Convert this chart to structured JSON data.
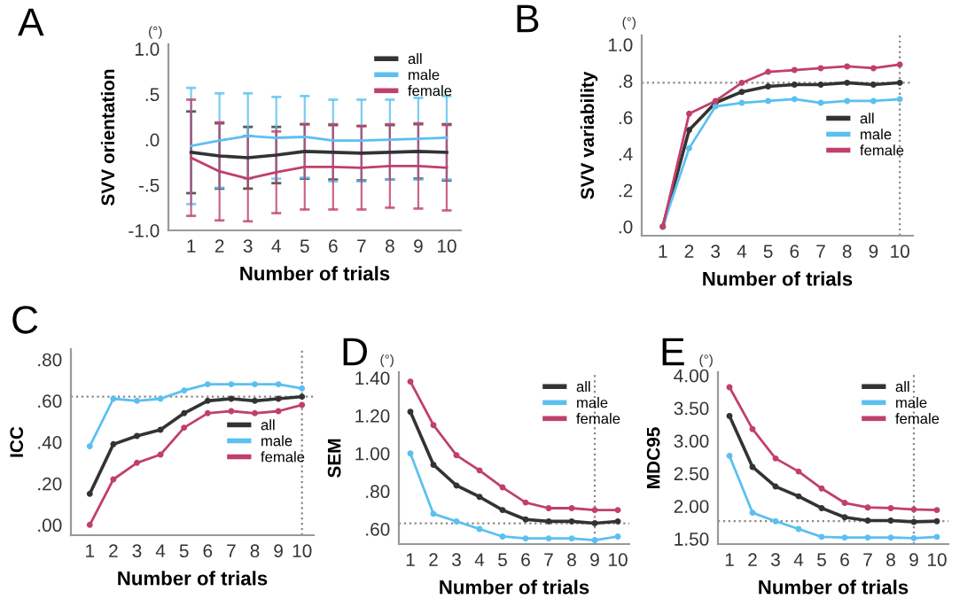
{
  "chart_data": [
    {
      "type": "line",
      "title": "A",
      "xlabel": "Number of trials",
      "ylabel": "SVV orientation",
      "annotations": [
        "(°)"
      ],
      "x": [
        1,
        2,
        3,
        4,
        5,
        6,
        7,
        8,
        9,
        10
      ],
      "xlim": [
        0.2,
        10.5
      ],
      "xticks": [
        1,
        2,
        3,
        4,
        5,
        6,
        7,
        8,
        9,
        10
      ],
      "ylim": [
        -1.0,
        1.05
      ],
      "yticks": [
        {
          "value": -1.0,
          "label": "-1.0"
        },
        {
          "value": -0.5,
          "label": "-.5"
        },
        {
          "value": 0,
          "label": ".0"
        },
        {
          "value": 0.5,
          "label": ".5"
        },
        {
          "value": 1.0,
          "label": "1.0"
        }
      ],
      "legend": "top right",
      "marker": "none",
      "grid": false,
      "series": [
        {
          "name": "all",
          "color": "#333333",
          "values": [
            -0.14,
            -0.18,
            -0.2,
            -0.17,
            -0.13,
            -0.14,
            -0.15,
            -0.14,
            -0.13,
            -0.14
          ],
          "errors": [
            0.45,
            0.36,
            0.34,
            0.31,
            0.3,
            0.3,
            0.3,
            0.3,
            0.3,
            0.31
          ]
        },
        {
          "name": "male",
          "color": "#5bc0f0",
          "values": [
            -0.07,
            -0.01,
            0.04,
            0.02,
            0.03,
            -0.01,
            -0.01,
            0.0,
            0.01,
            0.02
          ],
          "errors": [
            0.64,
            0.52,
            0.47,
            0.45,
            0.45,
            0.45,
            0.45,
            0.44,
            0.45,
            0.46
          ]
        },
        {
          "name": "female",
          "color": "#c0406a",
          "values": [
            -0.2,
            -0.35,
            -0.43,
            -0.36,
            -0.3,
            -0.3,
            -0.31,
            -0.29,
            -0.29,
            -0.31
          ],
          "errors": [
            0.64,
            0.54,
            0.47,
            0.45,
            0.47,
            0.47,
            0.46,
            0.46,
            0.47,
            0.47
          ]
        }
      ]
    },
    {
      "type": "line",
      "title": "B",
      "xlabel": "Number of trials",
      "ylabel": "SVV variability",
      "annotations": [
        "(°)"
      ],
      "x": [
        1,
        2,
        3,
        4,
        5,
        6,
        7,
        8,
        9,
        10
      ],
      "xlim": [
        0.2,
        10.5
      ],
      "xticks": [
        1,
        2,
        3,
        4,
        5,
        6,
        7,
        8,
        9,
        10
      ],
      "ylim": [
        -0.05,
        1.05
      ],
      "yticks": [
        {
          "value": 0,
          "label": ".0"
        },
        {
          "value": 0.2,
          "label": ".2"
        },
        {
          "value": 0.4,
          "label": ".4"
        },
        {
          "value": 0.6,
          "label": ".6"
        },
        {
          "value": 0.8,
          "label": ".8"
        },
        {
          "value": 1.0,
          "label": "1.0"
        }
      ],
      "legend": "right",
      "marker": "circle",
      "grid": false,
      "ref_lines": [
        {
          "axis": "y",
          "value": 0.79,
          "line_style": "dotted",
          "color": "#888888"
        },
        {
          "axis": "x",
          "value": 10,
          "line_style": "dotted",
          "color": "#888888"
        }
      ],
      "series": [
        {
          "name": "all",
          "color": "#333333",
          "values": [
            0.0,
            0.53,
            0.68,
            0.74,
            0.77,
            0.78,
            0.78,
            0.79,
            0.78,
            0.79
          ]
        },
        {
          "name": "male",
          "color": "#5bc0f0",
          "values": [
            0.0,
            0.43,
            0.66,
            0.68,
            0.69,
            0.7,
            0.68,
            0.69,
            0.69,
            0.7
          ]
        },
        {
          "name": "female",
          "color": "#c0406a",
          "values": [
            0.0,
            0.62,
            0.69,
            0.79,
            0.85,
            0.86,
            0.87,
            0.88,
            0.87,
            0.89
          ]
        }
      ]
    },
    {
      "type": "line",
      "title": "C",
      "xlabel": "Number of trials",
      "ylabel": "ICC",
      "x": [
        1,
        2,
        3,
        4,
        5,
        6,
        7,
        8,
        9,
        10
      ],
      "xlim": [
        0.2,
        10.5
      ],
      "xticks": [
        1,
        2,
        3,
        4,
        5,
        6,
        7,
        8,
        9,
        10
      ],
      "ylim": [
        -0.05,
        0.85
      ],
      "yticks": [
        {
          "value": 0,
          "label": ".00"
        },
        {
          "value": 0.2,
          "label": ".20"
        },
        {
          "value": 0.4,
          "label": ".40"
        },
        {
          "value": 0.6,
          "label": ".60"
        },
        {
          "value": 0.8,
          "label": ".80"
        }
      ],
      "legend": "right",
      "marker": "circle",
      "grid": false,
      "ref_lines": [
        {
          "axis": "y",
          "value": 0.62,
          "line_style": "dotted",
          "color": "#888888"
        },
        {
          "axis": "x",
          "value": 10,
          "line_style": "dotted",
          "color": "#888888"
        }
      ],
      "series": [
        {
          "name": "all",
          "color": "#333333",
          "values": [
            0.15,
            0.39,
            0.43,
            0.46,
            0.54,
            0.6,
            0.61,
            0.6,
            0.61,
            0.62
          ]
        },
        {
          "name": "male",
          "color": "#5bc0f0",
          "values": [
            0.38,
            0.61,
            0.6,
            0.61,
            0.65,
            0.68,
            0.68,
            0.68,
            0.68,
            0.66
          ]
        },
        {
          "name": "female",
          "color": "#c0406a",
          "values": [
            0.0,
            0.22,
            0.3,
            0.34,
            0.47,
            0.54,
            0.55,
            0.54,
            0.55,
            0.58
          ]
        }
      ]
    },
    {
      "type": "line",
      "title": "D",
      "xlabel": "Number of trials",
      "ylabel": "SEM",
      "annotations": [
        "(°)"
      ],
      "x": [
        1,
        2,
        3,
        4,
        5,
        6,
        7,
        8,
        9,
        10
      ],
      "xlim": [
        0.5,
        10.5
      ],
      "xticks": [
        1,
        2,
        3,
        4,
        5,
        6,
        7,
        8,
        9,
        10
      ],
      "ylim": [
        0.52,
        1.43
      ],
      "yticks": [
        {
          "value": 0.6,
          "label": ".60"
        },
        {
          "value": 0.8,
          "label": ".80"
        },
        {
          "value": 1.0,
          "label": "1.00"
        },
        {
          "value": 1.2,
          "label": "1.20"
        },
        {
          "value": 1.4,
          "label": "1.40"
        }
      ],
      "legend": "top right",
      "marker": "circle",
      "grid": false,
      "ref_lines": [
        {
          "axis": "y",
          "value": 0.63,
          "line_style": "dotted",
          "color": "#888888"
        },
        {
          "axis": "x",
          "value": 9,
          "line_style": "dotted",
          "color": "#888888"
        }
      ],
      "series": [
        {
          "name": "all",
          "color": "#333333",
          "values": [
            1.22,
            0.94,
            0.83,
            0.77,
            0.7,
            0.65,
            0.64,
            0.64,
            0.63,
            0.64
          ]
        },
        {
          "name": "male",
          "color": "#5bc0f0",
          "values": [
            1.0,
            0.68,
            0.64,
            0.6,
            0.56,
            0.55,
            0.55,
            0.55,
            0.54,
            0.56
          ]
        },
        {
          "name": "female",
          "color": "#c0406a",
          "values": [
            1.38,
            1.15,
            0.99,
            0.91,
            0.82,
            0.74,
            0.71,
            0.71,
            0.7,
            0.7
          ]
        }
      ]
    },
    {
      "type": "line",
      "title": "E",
      "xlabel": "Number of trials",
      "ylabel": "MDC95",
      "annotations": [
        "(°)"
      ],
      "x": [
        1,
        2,
        3,
        4,
        5,
        6,
        7,
        8,
        9,
        10
      ],
      "xlim": [
        0.5,
        10.5
      ],
      "xticks": [
        1,
        2,
        3,
        4,
        5,
        6,
        7,
        8,
        9,
        10
      ],
      "ylim": [
        1.42,
        4.05
      ],
      "yticks": [
        {
          "value": 1.5,
          "label": "1.50"
        },
        {
          "value": 2.0,
          "label": "2.00"
        },
        {
          "value": 2.5,
          "label": "2.50"
        },
        {
          "value": 3.0,
          "label": "3.00"
        },
        {
          "value": 3.5,
          "label": "3.50"
        },
        {
          "value": 4.0,
          "label": "4.00"
        }
      ],
      "legend": "top right",
      "marker": "circle",
      "grid": false,
      "ref_lines": [
        {
          "axis": "y",
          "value": 1.77,
          "line_style": "dotted",
          "color": "#888888"
        },
        {
          "axis": "x",
          "value": 9,
          "line_style": "dotted",
          "color": "#888888"
        }
      ],
      "series": [
        {
          "name": "all",
          "color": "#333333",
          "values": [
            3.38,
            2.6,
            2.3,
            2.15,
            1.97,
            1.83,
            1.78,
            1.78,
            1.76,
            1.77
          ]
        },
        {
          "name": "male",
          "color": "#5bc0f0",
          "values": [
            2.77,
            1.9,
            1.77,
            1.65,
            1.53,
            1.52,
            1.52,
            1.52,
            1.51,
            1.53
          ]
        },
        {
          "name": "female",
          "color": "#c0406a",
          "values": [
            3.82,
            3.18,
            2.73,
            2.53,
            2.27,
            2.05,
            1.98,
            1.97,
            1.95,
            1.94
          ]
        }
      ]
    }
  ]
}
